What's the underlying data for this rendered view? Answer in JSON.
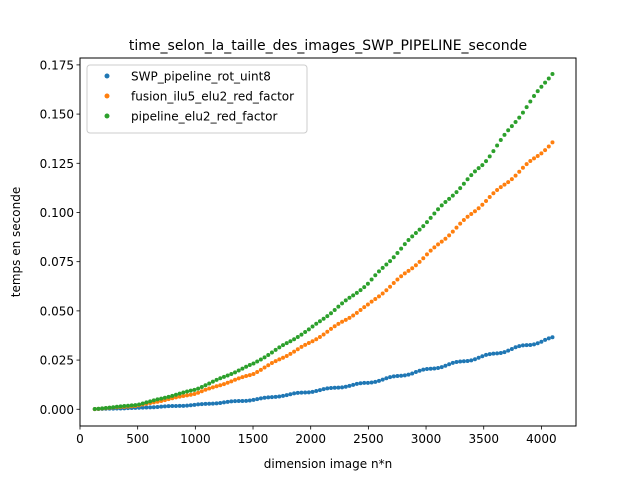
{
  "chart_data": {
    "type": "scatter",
    "title": "time_selon_la_taille_des_images_SWP_PIPELINE_seconde",
    "xlabel": "dimension image n*n",
    "ylabel": "temps en seconde",
    "xlim": [
      0,
      4300
    ],
    "ylim": [
      -0.0085,
      0.1785
    ],
    "xticks": [
      0,
      500,
      1000,
      1500,
      2000,
      2500,
      3000,
      3500,
      4000
    ],
    "yticks": [
      0.0,
      0.025,
      0.05,
      0.075,
      0.1,
      0.125,
      0.15,
      0.175
    ],
    "xtick_labels": [
      "0",
      "500",
      "1000",
      "1500",
      "2000",
      "2500",
      "3000",
      "3500",
      "4000"
    ],
    "ytick_labels": [
      "0.000",
      "0.025",
      "0.050",
      "0.075",
      "0.100",
      "0.125",
      "0.150",
      "0.175"
    ],
    "grid": false,
    "legend_position": "upper-left",
    "x_range": [
      128,
      4096
    ],
    "series": [
      {
        "name": "SWP_pipeline_rot_uint8",
        "color": "#1f77b4",
        "curve": [
          [
            128,
            0.0001
          ],
          [
            500,
            0.0007
          ],
          [
            1000,
            0.0022
          ],
          [
            1500,
            0.0048
          ],
          [
            2000,
            0.009
          ],
          [
            2500,
            0.0135
          ],
          [
            3000,
            0.02
          ],
          [
            3500,
            0.0268
          ],
          [
            4096,
            0.036
          ]
        ]
      },
      {
        "name": "fusion_ilu5_elu2_red_factor",
        "color": "#ff7f0e",
        "curve": [
          [
            128,
            0.0001
          ],
          [
            500,
            0.0018
          ],
          [
            1000,
            0.008
          ],
          [
            1500,
            0.018
          ],
          [
            2000,
            0.034
          ],
          [
            2500,
            0.053
          ],
          [
            3000,
            0.078
          ],
          [
            3500,
            0.105
          ],
          [
            4096,
            0.1355
          ]
        ]
      },
      {
        "name": "pipeline_elu2_red_factor",
        "color": "#2ca02c",
        "curve": [
          [
            128,
            0.0001
          ],
          [
            500,
            0.0023
          ],
          [
            1000,
            0.01
          ],
          [
            1500,
            0.023
          ],
          [
            2000,
            0.041
          ],
          [
            2500,
            0.064
          ],
          [
            3000,
            0.095
          ],
          [
            3500,
            0.125
          ],
          [
            4096,
            0.171
          ]
        ]
      }
    ]
  }
}
